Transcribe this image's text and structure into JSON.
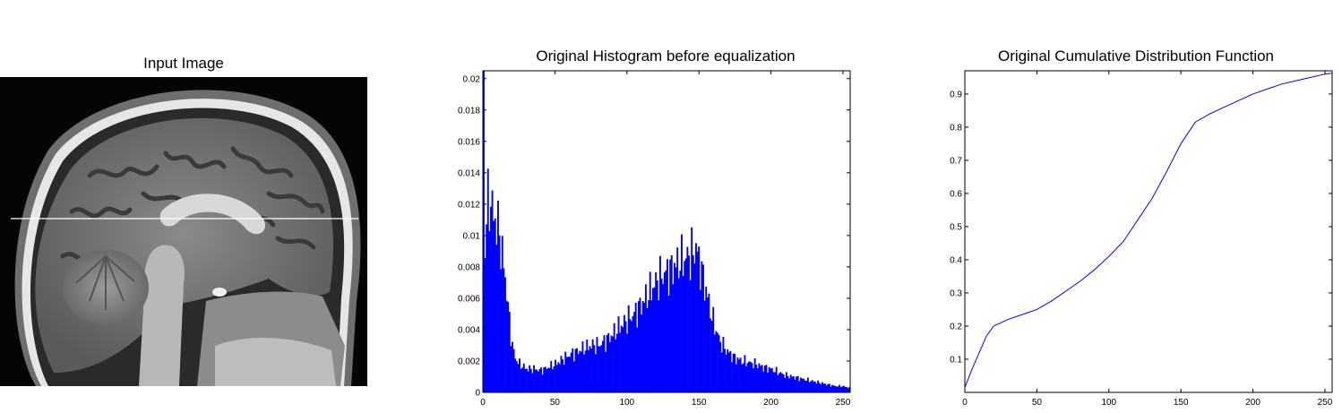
{
  "titles": {
    "input": "Input Image",
    "hist": "Original Histogram before equalization",
    "cdf": "Original Cumulative Distribution Function"
  },
  "colors": {
    "hist_bar": "#0000ff",
    "cdf_line": "#0000ff",
    "axes": "#000000"
  },
  "chart_data": [
    {
      "type": "bar",
      "title": "Original Histogram before equalization",
      "xlabel": "",
      "ylabel": "",
      "xlim": [
        0,
        255
      ],
      "ylim": [
        0,
        0.0205
      ],
      "xticks": [
        0,
        50,
        100,
        150,
        200,
        250
      ],
      "yticks": [
        0,
        0.002,
        0.004,
        0.006,
        0.008,
        0.01,
        0.012,
        0.014,
        0.016,
        0.018,
        0.02
      ],
      "envelope_x": [
        0,
        1,
        2,
        3,
        4,
        5,
        6,
        8,
        10,
        12,
        14,
        16,
        18,
        20,
        22,
        25,
        30,
        35,
        40,
        45,
        50,
        55,
        60,
        65,
        70,
        75,
        80,
        85,
        90,
        95,
        100,
        105,
        110,
        115,
        120,
        125,
        130,
        135,
        140,
        145,
        148,
        150,
        155,
        160,
        165,
        170,
        175,
        180,
        185,
        190,
        195,
        200,
        205,
        210,
        215,
        220,
        225,
        230,
        235,
        240,
        245,
        250,
        255
      ],
      "envelope_y": [
        0.0205,
        0.009,
        0.0115,
        0.0118,
        0.012,
        0.0125,
        0.0115,
        0.011,
        0.0105,
        0.0095,
        0.008,
        0.0065,
        0.0045,
        0.003,
        0.0022,
        0.0018,
        0.0015,
        0.0015,
        0.0014,
        0.0016,
        0.0018,
        0.0021,
        0.0024,
        0.0026,
        0.0028,
        0.003,
        0.003,
        0.0033,
        0.0037,
        0.0042,
        0.0046,
        0.005,
        0.0056,
        0.0063,
        0.007,
        0.0075,
        0.0078,
        0.0082,
        0.0085,
        0.0088,
        0.0092,
        0.0085,
        0.0065,
        0.0045,
        0.0032,
        0.0026,
        0.0022,
        0.002,
        0.0019,
        0.0018,
        0.0016,
        0.0015,
        0.0013,
        0.0011,
        0.001,
        0.0009,
        0.0008,
        0.0007,
        0.0006,
        0.0005,
        0.0004,
        0.0004,
        0.0003
      ]
    },
    {
      "type": "line",
      "title": "Original Cumulative Distribution Function",
      "xlabel": "",
      "ylabel": "",
      "xlim": [
        0,
        255
      ],
      "ylim": [
        0,
        0.97
      ],
      "xticks": [
        0,
        50,
        100,
        150,
        200,
        250
      ],
      "yticks": [
        0.1,
        0.2,
        0.3,
        0.4,
        0.5,
        0.6,
        0.7,
        0.8,
        0.9
      ],
      "x": [
        0,
        5,
        10,
        15,
        20,
        25,
        30,
        40,
        50,
        60,
        70,
        80,
        90,
        100,
        110,
        120,
        130,
        140,
        150,
        160,
        170,
        180,
        190,
        200,
        210,
        220,
        230,
        240,
        250,
        255
      ],
      "y": [
        0.015,
        0.07,
        0.12,
        0.17,
        0.2,
        0.21,
        0.22,
        0.235,
        0.25,
        0.275,
        0.305,
        0.335,
        0.37,
        0.41,
        0.455,
        0.52,
        0.585,
        0.665,
        0.75,
        0.815,
        0.84,
        0.86,
        0.88,
        0.9,
        0.915,
        0.93,
        0.94,
        0.95,
        0.96,
        0.963
      ]
    }
  ]
}
